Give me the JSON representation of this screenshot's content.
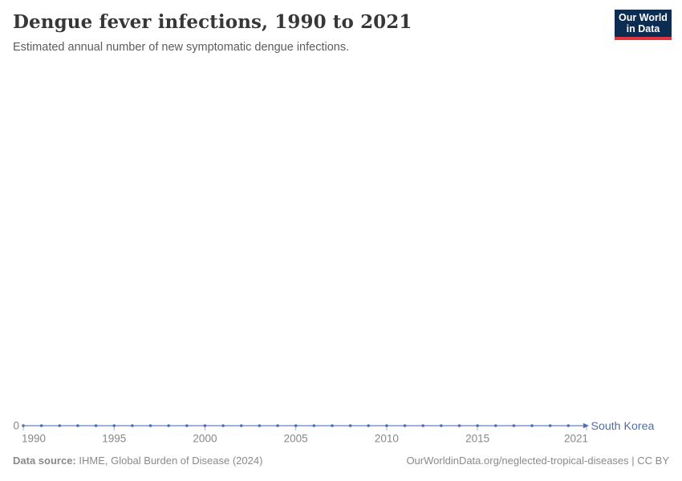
{
  "header": {
    "title": "Dengue fever infections, 1990 to 2021",
    "subtitle": "Estimated annual number of new symptomatic dengue infections.",
    "logo": {
      "line1": "Our World",
      "line2": "in Data",
      "bg_color": "#0d2c52",
      "accent_color": "#e0363d",
      "text_color": "#ffffff"
    }
  },
  "chart_data": {
    "type": "line",
    "title": "Dengue fever infections, 1990 to 2021",
    "xlabel": "",
    "ylabel": "",
    "xlim": [
      1990,
      2021
    ],
    "ylim": [
      0,
      1
    ],
    "grid": false,
    "legend_position": "end-of-line-label",
    "x_ticks": [
      1990,
      1995,
      2000,
      2005,
      2010,
      2015,
      2021
    ],
    "y_ticks": [
      0
    ],
    "y_zero_label": "0",
    "x": [
      1990,
      1991,
      1992,
      1993,
      1994,
      1995,
      1996,
      1997,
      1998,
      1999,
      2000,
      2001,
      2002,
      2003,
      2004,
      2005,
      2006,
      2007,
      2008,
      2009,
      2010,
      2011,
      2012,
      2013,
      2014,
      2015,
      2016,
      2017,
      2018,
      2019,
      2020,
      2021
    ],
    "series": [
      {
        "name": "South Korea",
        "color": "#4c6fae",
        "values": [
          0,
          0,
          0,
          0,
          0,
          0,
          0,
          0,
          0,
          0,
          0,
          0,
          0,
          0,
          0,
          0,
          0,
          0,
          0,
          0,
          0,
          0,
          0,
          0,
          0,
          0,
          0,
          0,
          0,
          0,
          0,
          0
        ]
      }
    ]
  },
  "colors": {
    "axis_text": "#878787",
    "tick_mark": "#b2b2b2",
    "line_light": "#7c99c9"
  },
  "footer": {
    "datasource_bold": "Data source:",
    "datasource_text": " IHME, Global Burden of Disease (2024)",
    "credit": "OurWorldinData.org/neglected-tropical-diseases | CC BY"
  }
}
